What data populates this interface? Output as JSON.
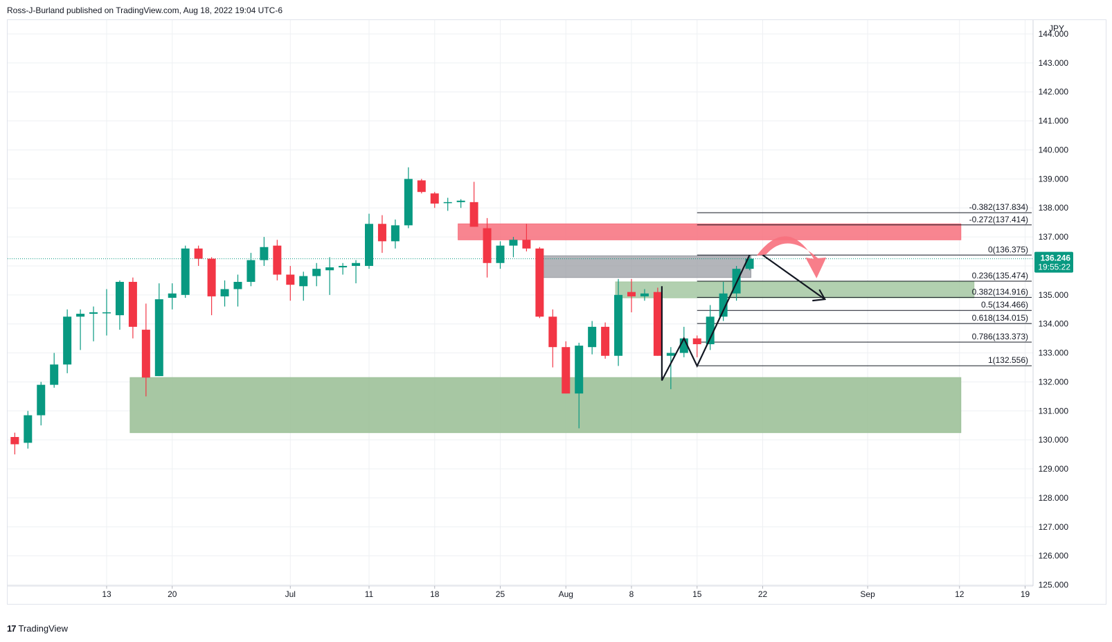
{
  "header": {
    "published_text": "Ross-J-Burland published on TradingView.com, Aug 18, 2022 19:04 UTC-6"
  },
  "footer": {
    "logo_mark": "17",
    "logo_text": "TradingView"
  },
  "chart_data": {
    "type": "candlestick",
    "currency": "JPY",
    "ylim": [
      125.0,
      144.0
    ],
    "y_ticks": [
      125,
      126,
      127,
      128,
      129,
      130,
      131,
      132,
      133,
      134,
      135,
      136,
      137,
      138,
      139,
      140,
      141,
      142,
      143,
      144
    ],
    "x_ticks": [
      {
        "label": "13",
        "date": "2022-06-13"
      },
      {
        "label": "20",
        "date": "2022-06-20"
      },
      {
        "label": "Jul",
        "date": "2022-07-01"
      },
      {
        "label": "11",
        "date": "2022-07-11"
      },
      {
        "label": "18",
        "date": "2022-07-18"
      },
      {
        "label": "25",
        "date": "2022-07-25"
      },
      {
        "label": "Aug",
        "date": "2022-08-01"
      },
      {
        "label": "8",
        "date": "2022-08-08"
      },
      {
        "label": "15",
        "date": "2022-08-15"
      },
      {
        "label": "22",
        "date": "2022-08-22"
      },
      {
        "label": "Sep",
        "date": "2022-09-01"
      },
      {
        "label": "12",
        "date": "2022-09-12"
      },
      {
        "label": "19",
        "date": "2022-09-19"
      }
    ],
    "last_price": {
      "value": "136.246",
      "countdown": "19:55:22",
      "color": "#089981"
    },
    "up_color": "#089981",
    "down_color": "#f23645",
    "candles": [
      {
        "date": "2022-06-02",
        "o": 130.1,
        "h": 130.25,
        "l": 129.5,
        "c": 129.85
      },
      {
        "date": "2022-06-03",
        "o": 129.9,
        "h": 131.0,
        "l": 129.7,
        "c": 130.85
      },
      {
        "date": "2022-06-06",
        "o": 130.85,
        "h": 132.0,
        "l": 130.5,
        "c": 131.9
      },
      {
        "date": "2022-06-07",
        "o": 131.9,
        "h": 133.0,
        "l": 131.8,
        "c": 132.6
      },
      {
        "date": "2022-06-08",
        "o": 132.6,
        "h": 134.5,
        "l": 132.3,
        "c": 134.25
      },
      {
        "date": "2022-06-09",
        "o": 134.25,
        "h": 134.5,
        "l": 133.1,
        "c": 134.35
      },
      {
        "date": "2022-06-10",
        "o": 134.35,
        "h": 134.6,
        "l": 133.4,
        "c": 134.4
      },
      {
        "date": "2022-06-13",
        "o": 134.4,
        "h": 135.2,
        "l": 133.6,
        "c": 134.4
      },
      {
        "date": "2022-06-14",
        "o": 134.3,
        "h": 135.5,
        "l": 133.8,
        "c": 135.45
      },
      {
        "date": "2022-06-15",
        "o": 135.45,
        "h": 135.6,
        "l": 133.5,
        "c": 133.9
      },
      {
        "date": "2022-06-16",
        "o": 133.8,
        "h": 134.7,
        "l": 131.5,
        "c": 132.15
      },
      {
        "date": "2022-06-17",
        "o": 132.2,
        "h": 135.4,
        "l": 132.2,
        "c": 134.85
      },
      {
        "date": "2022-06-20",
        "o": 134.9,
        "h": 135.4,
        "l": 134.5,
        "c": 135.05
      },
      {
        "date": "2022-06-21",
        "o": 135.0,
        "h": 136.7,
        "l": 134.9,
        "c": 136.6
      },
      {
        "date": "2022-06-22",
        "o": 136.6,
        "h": 136.7,
        "l": 136.0,
        "c": 136.25
      },
      {
        "date": "2022-06-23",
        "o": 136.25,
        "h": 136.3,
        "l": 134.3,
        "c": 134.95
      },
      {
        "date": "2022-06-24",
        "o": 134.95,
        "h": 135.5,
        "l": 134.6,
        "c": 135.2
      },
      {
        "date": "2022-06-27",
        "o": 135.2,
        "h": 135.7,
        "l": 134.6,
        "c": 135.45
      },
      {
        "date": "2022-06-28",
        "o": 135.45,
        "h": 136.45,
        "l": 135.3,
        "c": 136.2
      },
      {
        "date": "2022-06-29",
        "o": 136.2,
        "h": 137.0,
        "l": 136.0,
        "c": 136.65
      },
      {
        "date": "2022-06-30",
        "o": 136.7,
        "h": 136.9,
        "l": 135.5,
        "c": 135.7
      },
      {
        "date": "2022-07-01",
        "o": 135.7,
        "h": 136.0,
        "l": 134.8,
        "c": 135.35
      },
      {
        "date": "2022-07-04",
        "o": 135.3,
        "h": 135.8,
        "l": 134.8,
        "c": 135.65
      },
      {
        "date": "2022-07-05",
        "o": 135.65,
        "h": 136.1,
        "l": 135.3,
        "c": 135.9
      },
      {
        "date": "2022-07-06",
        "o": 135.85,
        "h": 136.3,
        "l": 135.0,
        "c": 135.95
      },
      {
        "date": "2022-07-07",
        "o": 135.95,
        "h": 136.1,
        "l": 135.7,
        "c": 136.0
      },
      {
        "date": "2022-07-08",
        "o": 136.0,
        "h": 136.2,
        "l": 135.4,
        "c": 136.1
      },
      {
        "date": "2022-07-11",
        "o": 136.0,
        "h": 137.8,
        "l": 135.9,
        "c": 137.45
      },
      {
        "date": "2022-07-12",
        "o": 137.45,
        "h": 137.75,
        "l": 136.45,
        "c": 136.85
      },
      {
        "date": "2022-07-13",
        "o": 136.85,
        "h": 137.6,
        "l": 136.6,
        "c": 137.4
      },
      {
        "date": "2022-07-14",
        "o": 137.4,
        "h": 139.4,
        "l": 137.3,
        "c": 139.0
      },
      {
        "date": "2022-07-15",
        "o": 138.95,
        "h": 139.0,
        "l": 138.5,
        "c": 138.55
      },
      {
        "date": "2022-07-18",
        "o": 138.5,
        "h": 138.55,
        "l": 138.0,
        "c": 138.15
      },
      {
        "date": "2022-07-19",
        "o": 138.2,
        "h": 138.35,
        "l": 137.9,
        "c": 138.2
      },
      {
        "date": "2022-07-20",
        "o": 138.2,
        "h": 138.3,
        "l": 138.0,
        "c": 138.25
      },
      {
        "date": "2022-07-21",
        "o": 138.2,
        "h": 138.9,
        "l": 137.35,
        "c": 137.35
      },
      {
        "date": "2022-07-22",
        "o": 137.3,
        "h": 137.65,
        "l": 135.6,
        "c": 136.1
      },
      {
        "date": "2022-07-25",
        "o": 136.1,
        "h": 136.85,
        "l": 135.9,
        "c": 136.7
      },
      {
        "date": "2022-07-26",
        "o": 136.7,
        "h": 137.0,
        "l": 136.3,
        "c": 136.9
      },
      {
        "date": "2022-07-27",
        "o": 136.9,
        "h": 137.45,
        "l": 136.5,
        "c": 136.6
      },
      {
        "date": "2022-07-28",
        "o": 136.6,
        "h": 136.65,
        "l": 134.2,
        "c": 134.25
      },
      {
        "date": "2022-07-29",
        "o": 134.25,
        "h": 134.5,
        "l": 132.5,
        "c": 133.2
      },
      {
        "date": "2022-08-01",
        "o": 133.2,
        "h": 133.4,
        "l": 131.6,
        "c": 131.6
      },
      {
        "date": "2022-08-02",
        "o": 131.6,
        "h": 133.35,
        "l": 130.4,
        "c": 133.25
      },
      {
        "date": "2022-08-03",
        "o": 133.2,
        "h": 134.1,
        "l": 132.95,
        "c": 133.9
      },
      {
        "date": "2022-08-04",
        "o": 133.9,
        "h": 134.05,
        "l": 132.8,
        "c": 132.9
      },
      {
        "date": "2022-08-05",
        "o": 132.9,
        "h": 135.55,
        "l": 132.55,
        "c": 135.0
      },
      {
        "date": "2022-08-08",
        "o": 135.1,
        "h": 135.55,
        "l": 134.4,
        "c": 134.95
      },
      {
        "date": "2022-08-09",
        "o": 134.95,
        "h": 135.2,
        "l": 134.8,
        "c": 135.05
      },
      {
        "date": "2022-08-10",
        "o": 135.1,
        "h": 135.25,
        "l": 132.9,
        "c": 132.9
      },
      {
        "date": "2022-08-11",
        "o": 132.9,
        "h": 133.2,
        "l": 131.75,
        "c": 133.0
      },
      {
        "date": "2022-08-12",
        "o": 133.0,
        "h": 133.9,
        "l": 132.85,
        "c": 133.5
      },
      {
        "date": "2022-08-15",
        "o": 133.5,
        "h": 133.6,
        "l": 132.85,
        "c": 133.3
      },
      {
        "date": "2022-08-16",
        "o": 133.3,
        "h": 134.65,
        "l": 133.1,
        "c": 134.25
      },
      {
        "date": "2022-08-17",
        "o": 134.25,
        "h": 135.45,
        "l": 134.1,
        "c": 135.05
      },
      {
        "date": "2022-08-18",
        "o": 135.05,
        "h": 136.0,
        "l": 134.8,
        "c": 135.9
      },
      {
        "date": "2022-08-19",
        "o": 135.9,
        "h": 136.3,
        "l": 135.85,
        "c": 136.25
      }
    ],
    "fib_levels": [
      {
        "label": "-0.382(137.834)",
        "value": 137.834
      },
      {
        "label": "-0.272(137.414)",
        "value": 137.414
      },
      {
        "label": "0(136.375)",
        "value": 136.375
      },
      {
        "label": "0.236(135.474)",
        "value": 135.474
      },
      {
        "label": "0.382(134.916)",
        "value": 134.916
      },
      {
        "label": "0.5(134.466)",
        "value": 134.466
      },
      {
        "label": "0.618(134.015)",
        "value": 134.015
      },
      {
        "label": "0.786(133.373)",
        "value": 133.373
      },
      {
        "label": "1(132.556)",
        "value": 132.556
      }
    ],
    "zones": [
      {
        "name": "resistance-zone",
        "color": "#f7707d",
        "opacity": 0.85,
        "from_date": "2022-07-20",
        "to_date": "2022-09-12",
        "top": 137.45,
        "bottom": 136.9
      },
      {
        "name": "grey-zone",
        "color": "#9a9ca3",
        "opacity": 0.75,
        "from_date": "2022-07-28",
        "to_date": "2022-08-19",
        "top": 136.35,
        "bottom": 135.6
      },
      {
        "name": "fib-support-zone",
        "color": "#a5c8a2",
        "opacity": 0.85,
        "from_date": "2022-08-05",
        "to_date": "2022-09-13",
        "top": 135.45,
        "bottom": 134.9
      },
      {
        "name": "support-zone",
        "color": "#9dc199",
        "opacity": 0.9,
        "from_date": "2022-06-15",
        "to_date": "2022-09-12",
        "top": 132.15,
        "bottom": 130.25
      }
    ]
  }
}
